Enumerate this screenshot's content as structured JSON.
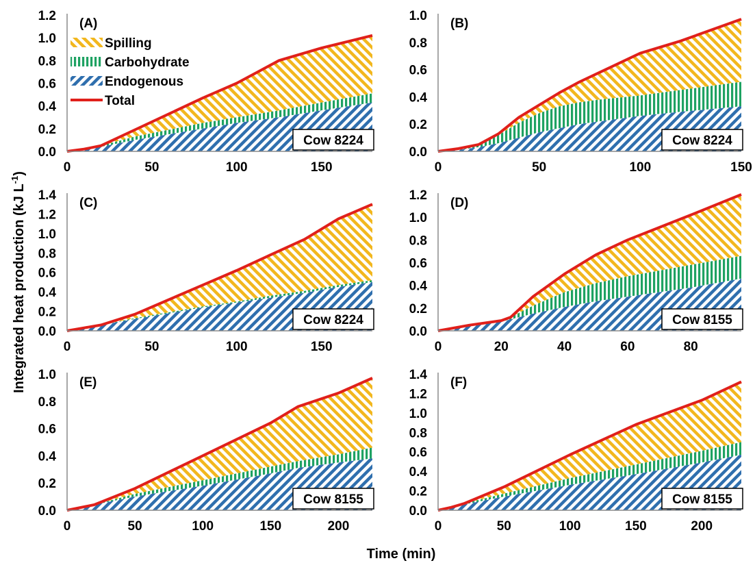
{
  "colors": {
    "spilling": "#F2B71E",
    "carbohydrate": "#1EA262",
    "endogenous": "#2F6FAE",
    "total": "#E0201B"
  },
  "axes": {
    "xlabel": "Time (min)",
    "ylabel_main": "Integrated heat production (kJ L",
    "ylabel_sup": "-1",
    "ylabel_end": ")"
  },
  "legend": {
    "placement": "top-left of panel A",
    "items": [
      {
        "key": "spilling",
        "label": "Spilling",
        "pattern": "backslash-hatch",
        "color": "#F2B71E"
      },
      {
        "key": "carbohydrate",
        "label": "Carbohydrate",
        "pattern": "vertical-hatch",
        "color": "#1EA262"
      },
      {
        "key": "endogenous",
        "label": "Endogenous",
        "pattern": "slash-hatch",
        "color": "#2F6FAE"
      },
      {
        "key": "total",
        "label": "Total",
        "pattern": "line",
        "color": "#E0201B"
      }
    ]
  },
  "chart_data": [
    {
      "type": "area",
      "panel": "(A)",
      "cow": "Cow 8224",
      "xlim": [
        0,
        180
      ],
      "ylim": [
        0,
        1.2
      ],
      "xticks": [
        "0",
        "50",
        "100",
        "150"
      ],
      "xtick_values": [
        0,
        50,
        100,
        150
      ],
      "yticks": [
        "0.0",
        "0.2",
        "0.4",
        "0.6",
        "0.8",
        "1.0",
        "1.2"
      ],
      "ytick_values": [
        0,
        0.2,
        0.4,
        0.6,
        0.8,
        1.0,
        1.2
      ],
      "x": [
        0,
        10,
        20,
        40,
        60,
        80,
        100,
        125,
        150,
        180
      ],
      "endogenous": [
        0,
        0.02,
        0.04,
        0.1,
        0.15,
        0.2,
        0.25,
        0.3,
        0.36,
        0.43
      ],
      "carbohydrate_top": [
        0,
        0.02,
        0.05,
        0.13,
        0.19,
        0.25,
        0.3,
        0.36,
        0.43,
        0.51
      ],
      "total": [
        0,
        0.02,
        0.05,
        0.19,
        0.33,
        0.47,
        0.6,
        0.8,
        0.91,
        1.02
      ]
    },
    {
      "type": "area",
      "panel": "(B)",
      "cow": "Cow 8224",
      "xlim": [
        0,
        150
      ],
      "ylim": [
        0,
        1.0
      ],
      "xticks": [
        "0",
        "50",
        "100",
        "150"
      ],
      "xtick_values": [
        0,
        50,
        100,
        150
      ],
      "yticks": [
        "0.0",
        "0.2",
        "0.4",
        "0.6",
        "0.8",
        "1.0"
      ],
      "ytick_values": [
        0,
        0.2,
        0.4,
        0.6,
        0.8,
        1.0
      ],
      "x": [
        0,
        10,
        20,
        30,
        40,
        50,
        60,
        70,
        80,
        100,
        120,
        150
      ],
      "endogenous": [
        0,
        0.01,
        0.03,
        0.06,
        0.1,
        0.14,
        0.17,
        0.2,
        0.22,
        0.26,
        0.29,
        0.33
      ],
      "carbohydrate_top": [
        0,
        0.02,
        0.05,
        0.12,
        0.21,
        0.28,
        0.33,
        0.36,
        0.38,
        0.41,
        0.45,
        0.51
      ],
      "total": [
        0,
        0.02,
        0.05,
        0.13,
        0.25,
        0.34,
        0.43,
        0.51,
        0.58,
        0.72,
        0.81,
        0.97
      ]
    },
    {
      "type": "area",
      "panel": "(C)",
      "cow": "Cow 8224",
      "xlim": [
        0,
        180
      ],
      "ylim": [
        0,
        1.4
      ],
      "xticks": [
        "0",
        "50",
        "100",
        "150"
      ],
      "xtick_values": [
        0,
        50,
        100,
        150
      ],
      "yticks": [
        "0.0",
        "0.2",
        "0.4",
        "0.6",
        "0.8",
        "1.0",
        "1.2",
        "1.4"
      ],
      "ytick_values": [
        0,
        0.2,
        0.4,
        0.6,
        0.8,
        1.0,
        1.2,
        1.4
      ],
      "x": [
        0,
        10,
        20,
        40,
        60,
        80,
        100,
        120,
        140,
        160,
        180
      ],
      "endogenous": [
        0,
        0.03,
        0.06,
        0.12,
        0.18,
        0.24,
        0.29,
        0.34,
        0.39,
        0.45,
        0.5
      ],
      "carbohydrate_top": [
        0,
        0.03,
        0.06,
        0.13,
        0.19,
        0.25,
        0.3,
        0.36,
        0.41,
        0.47,
        0.52
      ],
      "total": [
        0,
        0.03,
        0.06,
        0.17,
        0.32,
        0.47,
        0.62,
        0.78,
        0.94,
        1.15,
        1.3
      ]
    },
    {
      "type": "area",
      "panel": "(D)",
      "cow": "Cow 8155",
      "xlim": [
        0,
        96
      ],
      "ylim": [
        0,
        1.2
      ],
      "xticks": [
        "0",
        "20",
        "40",
        "60",
        "80"
      ],
      "xtick_values": [
        0,
        20,
        40,
        60,
        80
      ],
      "yticks": [
        "0.0",
        "0.2",
        "0.4",
        "0.6",
        "0.8",
        "1.0",
        "1.2"
      ],
      "ytick_values": [
        0,
        0.2,
        0.4,
        0.6,
        0.8,
        1.0,
        1.2
      ],
      "x": [
        0,
        10,
        20,
        23,
        30,
        40,
        50,
        60,
        70,
        80,
        96
      ],
      "endogenous": [
        0,
        0.04,
        0.08,
        0.1,
        0.15,
        0.21,
        0.26,
        0.3,
        0.34,
        0.38,
        0.46
      ],
      "carbohydrate_top": [
        0,
        0.05,
        0.09,
        0.12,
        0.22,
        0.34,
        0.42,
        0.48,
        0.53,
        0.58,
        0.66
      ],
      "total": [
        0,
        0.05,
        0.09,
        0.12,
        0.3,
        0.5,
        0.67,
        0.8,
        0.91,
        1.02,
        1.2
      ]
    },
    {
      "type": "area",
      "panel": "(E)",
      "cow": "Cow 8155",
      "xlim": [
        0,
        225
      ],
      "ylim": [
        0,
        1.0
      ],
      "xticks": [
        "0",
        "50",
        "100",
        "150",
        "200"
      ],
      "xtick_values": [
        0,
        50,
        100,
        150,
        200
      ],
      "yticks": [
        "0.0",
        "0.2",
        "0.4",
        "0.6",
        "0.8",
        "1.0"
      ],
      "ytick_values": [
        0,
        0.2,
        0.4,
        0.6,
        0.8,
        1.0
      ],
      "x": [
        0,
        10,
        20,
        50,
        100,
        150,
        170,
        200,
        225
      ],
      "endogenous": [
        0,
        0.02,
        0.04,
        0.1,
        0.18,
        0.27,
        0.31,
        0.35,
        0.38
      ],
      "carbohydrate_top": [
        0,
        0.02,
        0.04,
        0.12,
        0.22,
        0.32,
        0.36,
        0.41,
        0.46
      ],
      "total": [
        0,
        0.02,
        0.04,
        0.16,
        0.4,
        0.64,
        0.76,
        0.86,
        0.97
      ]
    },
    {
      "type": "area",
      "panel": "(F)",
      "cow": "Cow 8155",
      "xlim": [
        0,
        230
      ],
      "ylim": [
        0,
        1.4
      ],
      "xticks": [
        "0",
        "50",
        "100",
        "150",
        "200"
      ],
      "xtick_values": [
        0,
        50,
        100,
        150,
        200
      ],
      "yticks": [
        "0.0",
        "0.2",
        "0.4",
        "0.6",
        "0.8",
        "1.0",
        "1.2",
        "1.4"
      ],
      "ytick_values": [
        0,
        0.2,
        0.4,
        0.6,
        0.8,
        1.0,
        1.2,
        1.4
      ],
      "x": [
        0,
        10,
        20,
        50,
        100,
        150,
        200,
        230
      ],
      "endogenous": [
        0,
        0.03,
        0.06,
        0.14,
        0.26,
        0.37,
        0.49,
        0.57
      ],
      "carbohydrate_top": [
        0,
        0.03,
        0.07,
        0.17,
        0.33,
        0.47,
        0.61,
        0.7
      ],
      "total": [
        0,
        0.03,
        0.07,
        0.24,
        0.57,
        0.88,
        1.13,
        1.32
      ]
    }
  ]
}
